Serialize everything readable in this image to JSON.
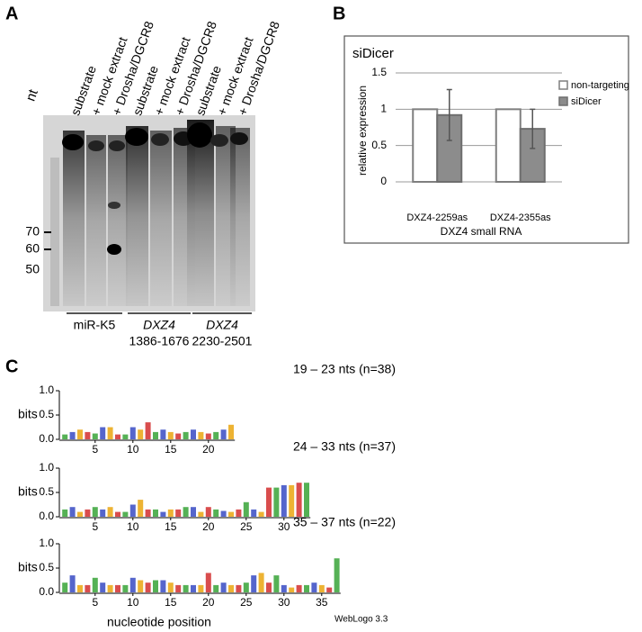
{
  "panel_a": {
    "label": "A",
    "unit": "nt",
    "lanes": [
      "substrate",
      "+ mock extract",
      "+ Drosha/DGCR8",
      "substrate",
      "+ mock extract",
      "+ Drosha/DGCR8",
      "substrate",
      "+ mock extract",
      "+ Drosha/DGCR8"
    ],
    "markers": [
      70,
      60,
      50
    ],
    "groups": [
      {
        "name": "miR-K5"
      },
      {
        "name": "DXZ4",
        "range": "1386-1676"
      },
      {
        "name": "DXZ4",
        "range": "2230-2501"
      }
    ]
  },
  "panel_b": {
    "label": "B"
  },
  "chart_data": {
    "type": "bar",
    "title": "siDicer",
    "y_label": "relative expression",
    "x_label": "DXZ4 small RNA",
    "categories": [
      "DXZ4-2259as",
      "DXZ4-2355as"
    ],
    "series": [
      {
        "name": "non-targeting",
        "color": "#ffffff",
        "stroke": "#7f7f7f",
        "values": [
          1,
          1
        ]
      },
      {
        "name": "siDicer",
        "color": "#8c8c8c",
        "stroke": "#6e6e6e",
        "values": [
          0.92,
          0.73
        ],
        "errors": [
          0.35,
          0.27
        ]
      }
    ],
    "ylim": [
      0,
      1.5
    ],
    "yticks": [
      0,
      0.5,
      1,
      1.5
    ],
    "grid": true,
    "legend": "top-right"
  },
  "panel_c": {
    "label": "C",
    "ylabel": "bits",
    "xlabel": "nucleotide position",
    "credit": "WebLogo 3.3",
    "letter_colors": [
      "#2a9d2a",
      "#2a3fbf",
      "#e8a000",
      "#d02020"
    ],
    "logos": [
      {
        "title": "19 – 23 nts (n=38)",
        "xlim": [
          0.5,
          23.5
        ],
        "xticks": [
          5,
          10,
          15,
          20
        ],
        "ylim": [
          0,
          1
        ],
        "yticks": [
          {
            "value": 0,
            "label": "0.0"
          },
          {
            "value": 0.5,
            "label": "0.5"
          },
          {
            "value": 1,
            "label": "1.0"
          }
        ],
        "values": [
          0.1,
          0.15,
          0.2,
          0.15,
          0.12,
          0.25,
          0.25,
          0.1,
          0.1,
          0.25,
          0.2,
          0.35,
          0.15,
          0.2,
          0.15,
          0.12,
          0.15,
          0.2,
          0.15,
          0.12,
          0.15,
          0.2,
          0.3
        ]
      },
      {
        "title": "24 – 33 nts (n=37)",
        "xlim": [
          0.5,
          33.5
        ],
        "xticks": [
          5,
          10,
          15,
          20,
          25,
          30
        ],
        "ylim": [
          0,
          1
        ],
        "yticks": [
          {
            "value": 0,
            "label": "0.0"
          },
          {
            "value": 0.5,
            "label": "0.5"
          },
          {
            "value": 1,
            "label": "1.0"
          }
        ],
        "values": [
          0.15,
          0.2,
          0.1,
          0.15,
          0.2,
          0.15,
          0.2,
          0.1,
          0.1,
          0.25,
          0.35,
          0.15,
          0.15,
          0.1,
          0.15,
          0.15,
          0.2,
          0.2,
          0.1,
          0.2,
          0.15,
          0.12,
          0.1,
          0.15,
          0.3,
          0.15,
          0.1,
          0.6,
          0.6,
          0.65,
          0.65,
          0.7,
          0.7
        ]
      },
      {
        "title": "35 – 37 nts (n=22)",
        "xlim": [
          0.5,
          37.5
        ],
        "xticks": [
          5,
          10,
          15,
          20,
          25,
          30,
          35
        ],
        "ylim": [
          0,
          1
        ],
        "yticks": [
          {
            "value": 0,
            "label": "0.0"
          },
          {
            "value": 0.5,
            "label": "0.5"
          },
          {
            "value": 1,
            "label": "1.0"
          }
        ],
        "values": [
          0.2,
          0.35,
          0.15,
          0.15,
          0.3,
          0.2,
          0.15,
          0.15,
          0.15,
          0.3,
          0.25,
          0.2,
          0.25,
          0.25,
          0.2,
          0.15,
          0.15,
          0.15,
          0.15,
          0.4,
          0.15,
          0.2,
          0.15,
          0.15,
          0.2,
          0.35,
          0.4,
          0.2,
          0.35,
          0.15,
          0.1,
          0.15,
          0.15,
          0.2,
          0.15,
          0.1,
          0.7
        ]
      }
    ]
  }
}
